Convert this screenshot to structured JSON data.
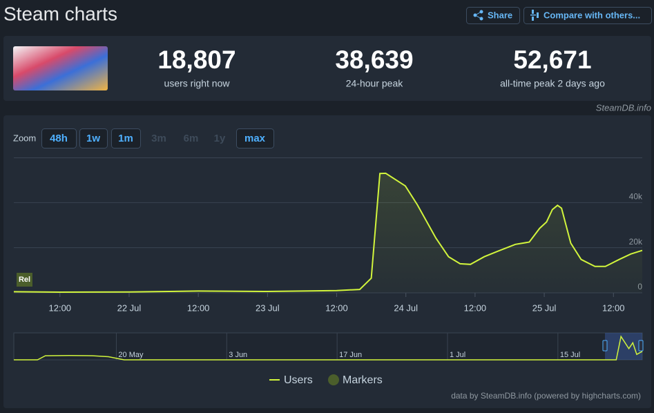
{
  "header": {
    "title": "Steam charts",
    "buttons": [
      "Share",
      "Compare with others..."
    ]
  },
  "stats": [
    {
      "value": "18,807",
      "label": "users right now"
    },
    {
      "value": "38,639",
      "label": "24-hour peak"
    },
    {
      "value": "52,671",
      "label": "all-time peak 2 days ago"
    }
  ],
  "source": "SteamDB.info",
  "zoom": {
    "label": "Zoom",
    "buttons": [
      "48h",
      "1w",
      "1m",
      "3m",
      "6m",
      "1y",
      "max"
    ],
    "enabled": [
      true,
      true,
      true,
      false,
      false,
      false,
      true
    ]
  },
  "credit": "data by SteamDB.info (powered by highcharts.com)",
  "chart_data": {
    "type": "line",
    "x": [
      4,
      12,
      24,
      36,
      48,
      60,
      64,
      66,
      67.5,
      68.5,
      71.9,
      74,
      77.2,
      79.4,
      81.4,
      83.2,
      85.6,
      88,
      91,
      93.4,
      95.2,
      96.4,
      97.4,
      98.3,
      99,
      100.6,
      102.4,
      104.8,
      106.6,
      109,
      111,
      113
    ],
    "series": [
      {
        "name": "Users",
        "color": "#d2f53c",
        "values": [
          500,
          300,
          400,
          800,
          600,
          1000,
          1500,
          6500,
          52900,
          53000,
          47400,
          39000,
          24300,
          16000,
          12900,
          12600,
          16000,
          18500,
          21500,
          22500,
          28600,
          31400,
          36900,
          38800,
          37500,
          22000,
          14800,
          11700,
          11700,
          14800,
          17200,
          18807
        ]
      }
    ],
    "markers": {
      "name": "Markers",
      "color": "#4b5e2b",
      "labels": [
        "Rel"
      ]
    },
    "xlim": [
      4,
      113
    ],
    "xticks": [
      {
        "value": 12,
        "label": "12:00"
      },
      {
        "value": 24,
        "label": "22 Jul"
      },
      {
        "value": 36,
        "label": "12:00"
      },
      {
        "value": 48,
        "label": "23 Jul"
      },
      {
        "value": 60,
        "label": "12:00"
      },
      {
        "value": 72,
        "label": "24 Jul"
      },
      {
        "value": 84,
        "label": "12:00"
      },
      {
        "value": 96,
        "label": "25 Jul"
      },
      {
        "value": 108,
        "label": "12:00"
      }
    ],
    "ylim": [
      0,
      60000
    ],
    "yticks": [
      0,
      {
        "value": 20000,
        "label": "20k"
      },
      {
        "value": 40000,
        "label": "40k"
      }
    ],
    "grid": true,
    "navigator": {
      "xlim": [
        7,
        86.7
      ],
      "ylim": [
        0,
        60000
      ],
      "xticks": [
        {
          "value": 20,
          "label": "20 May"
        },
        {
          "value": 34,
          "label": "3 Jun"
        },
        {
          "value": 48,
          "label": "17 Jun"
        },
        {
          "value": 62,
          "label": "1 Jul"
        },
        {
          "value": 76,
          "label": "15 Jul"
        }
      ],
      "x": [
        7,
        10,
        11,
        14,
        17,
        19,
        21,
        83.4,
        84,
        85,
        85.5,
        86,
        86.7
      ],
      "values": [
        0,
        0,
        9000,
        9500,
        9000,
        7000,
        0,
        0,
        52000,
        25000,
        38000,
        12000,
        18807
      ]
    }
  }
}
